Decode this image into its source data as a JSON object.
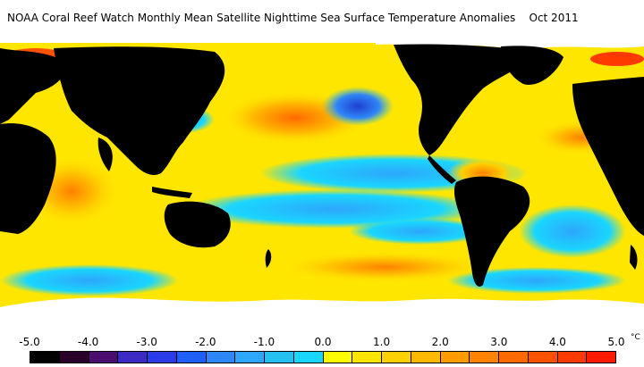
{
  "title": "NOAA Coral Reef Watch Monthly Mean Satellite Nighttime Sea Surface Temperature Anomalies    Oct 2011",
  "map": {
    "land_color": "#000000",
    "ice_color": "#ffffff",
    "background_color": "#ffffff"
  },
  "legend": {
    "tick_labels": [
      "-5.0",
      "-4.0",
      "-3.0",
      "-2.0",
      "-1.0",
      "0.0",
      "1.0",
      "2.0",
      "3.0",
      "4.0",
      "5.0"
    ],
    "unit": "°C",
    "colors": [
      "#000000",
      "#2a002a",
      "#4a0f6e",
      "#3b2bc2",
      "#2a3ce8",
      "#1f5ff5",
      "#2f86f7",
      "#2ea6fb",
      "#26c0f0",
      "#19d6ff",
      "#ffff00",
      "#ffe600",
      "#ffd000",
      "#ffb800",
      "#ff9d00",
      "#ff8200",
      "#ff6a00",
      "#ff5200",
      "#ff3a00",
      "#ff1a00"
    ]
  }
}
